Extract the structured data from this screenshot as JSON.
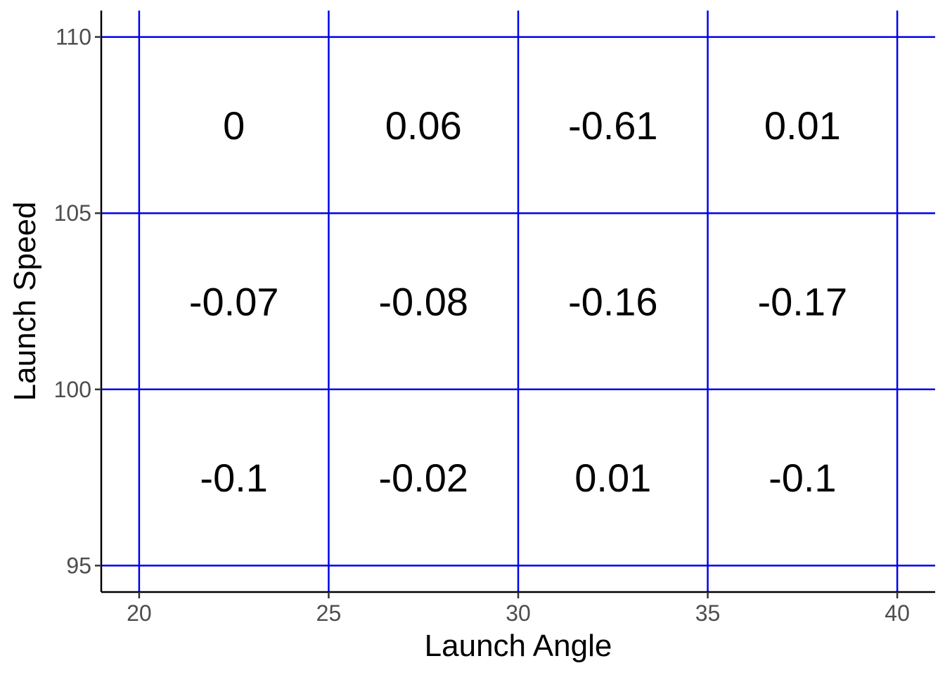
{
  "chart_data": {
    "type": "heatmap",
    "xlabel": "Launch Angle",
    "ylabel": "Launch Speed",
    "xlim": [
      19,
      41
    ],
    "ylim": [
      94.25,
      110.75
    ],
    "x_ticks": [
      20,
      25,
      30,
      35,
      40
    ],
    "y_ticks": [
      95,
      100,
      105,
      110
    ],
    "x_tick_labels": [
      "20",
      "25",
      "30",
      "35",
      "40"
    ],
    "y_tick_labels": [
      "95",
      "100",
      "105",
      "110"
    ],
    "grid": true,
    "grid_color": "#0000ee",
    "cells": [
      {
        "x": [
          20,
          25
        ],
        "y": [
          105,
          110
        ],
        "label": "0",
        "value": 0
      },
      {
        "x": [
          25,
          30
        ],
        "y": [
          105,
          110
        ],
        "label": "0.06",
        "value": 0.06
      },
      {
        "x": [
          30,
          35
        ],
        "y": [
          105,
          110
        ],
        "label": "-0.61",
        "value": -0.61
      },
      {
        "x": [
          35,
          40
        ],
        "y": [
          105,
          110
        ],
        "label": "0.01",
        "value": 0.01
      },
      {
        "x": [
          20,
          25
        ],
        "y": [
          100,
          105
        ],
        "label": "-0.07",
        "value": -0.07
      },
      {
        "x": [
          25,
          30
        ],
        "y": [
          100,
          105
        ],
        "label": "-0.08",
        "value": -0.08
      },
      {
        "x": [
          30,
          35
        ],
        "y": [
          100,
          105
        ],
        "label": "-0.16",
        "value": -0.16
      },
      {
        "x": [
          35,
          40
        ],
        "y": [
          100,
          105
        ],
        "label": "-0.17",
        "value": -0.17
      },
      {
        "x": [
          20,
          25
        ],
        "y": [
          95,
          100
        ],
        "label": "-0.1",
        "value": -0.1
      },
      {
        "x": [
          25,
          30
        ],
        "y": [
          95,
          100
        ],
        "label": "-0.02",
        "value": -0.02
      },
      {
        "x": [
          30,
          35
        ],
        "y": [
          95,
          100
        ],
        "label": "0.01",
        "value": 0.01
      },
      {
        "x": [
          35,
          40
        ],
        "y": [
          95,
          100
        ],
        "label": "-0.1",
        "value": -0.1
      }
    ]
  }
}
